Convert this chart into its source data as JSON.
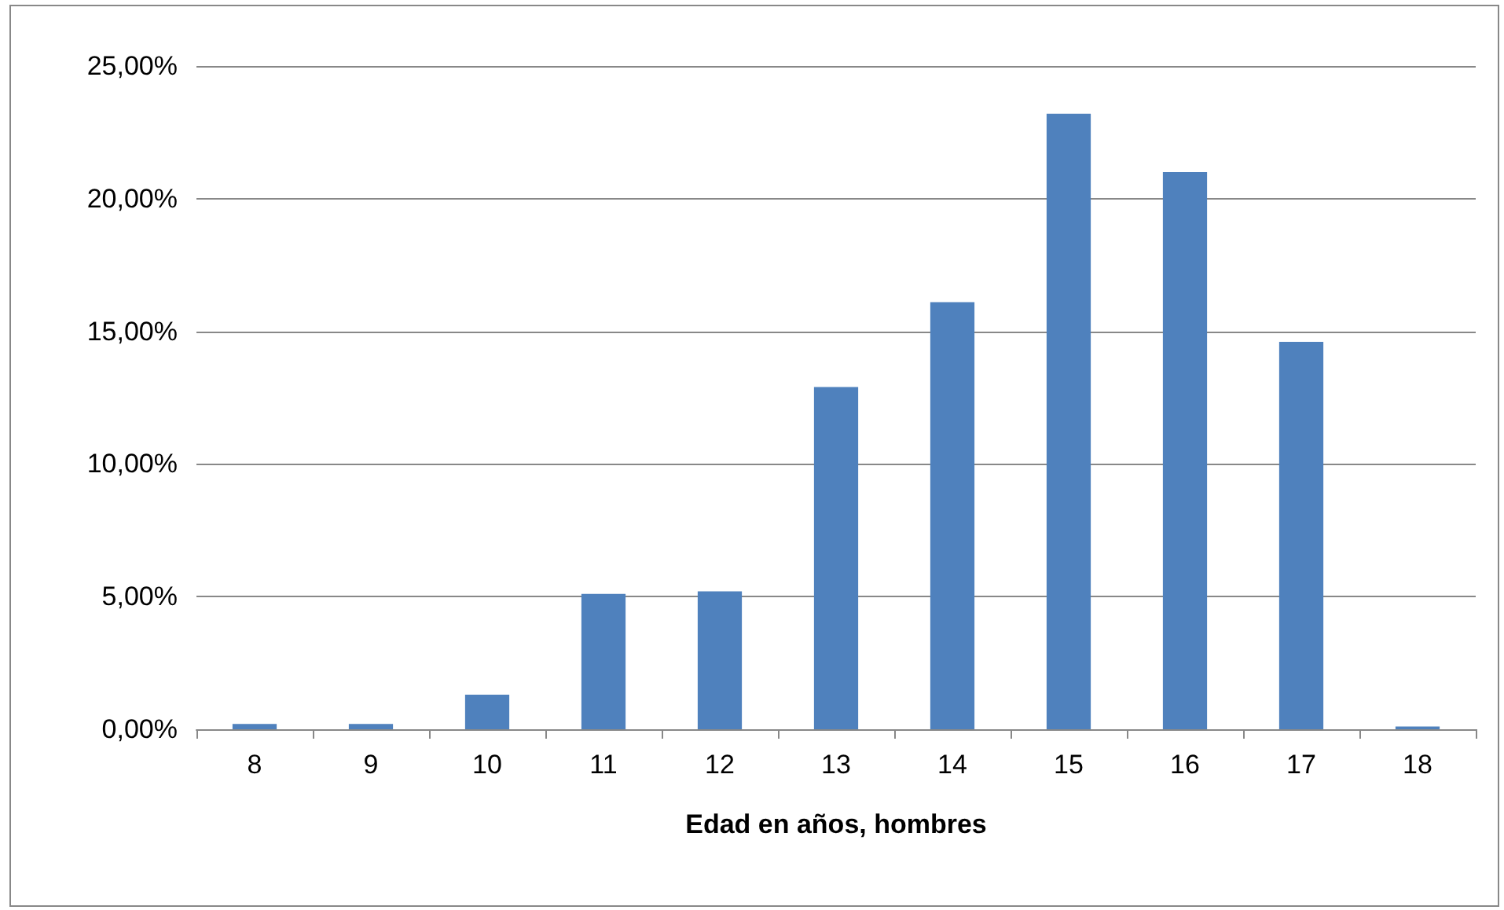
{
  "chart_data": {
    "type": "bar",
    "xlabel": "Edad en años, hombres",
    "categories": [
      "8",
      "9",
      "10",
      "11",
      "12",
      "13",
      "14",
      "15",
      "16",
      "17",
      "18"
    ],
    "values": [
      0.2,
      0.2,
      1.3,
      5.1,
      5.2,
      12.9,
      16.1,
      23.2,
      21.0,
      14.6,
      0.1
    ],
    "color": "#4f81bd",
    "ylim": [
      0,
      25
    ],
    "yticks": [
      {
        "value": 0,
        "label": "0,00%"
      },
      {
        "value": 5,
        "label": "5,00%"
      },
      {
        "value": 10,
        "label": "10,00%"
      },
      {
        "value": 15,
        "label": "15,00%"
      },
      {
        "value": 20,
        "label": "20,00%"
      },
      {
        "value": 25,
        "label": "25,00%"
      }
    ],
    "grid": "y"
  }
}
